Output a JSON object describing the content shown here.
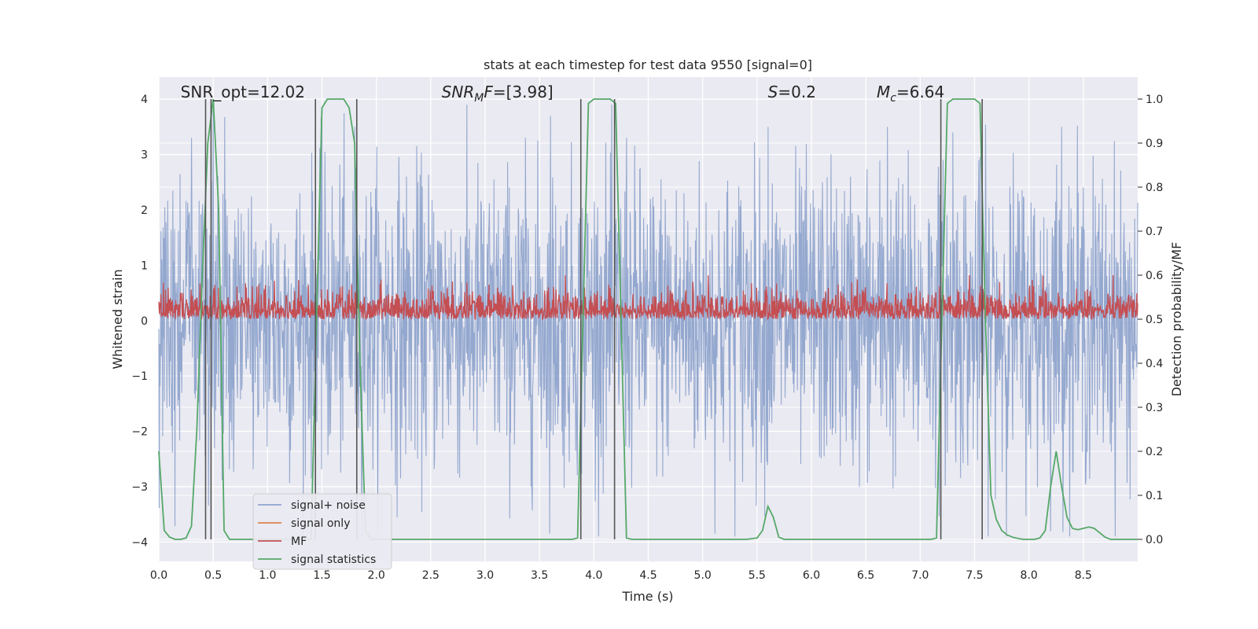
{
  "chart_data": {
    "type": "line",
    "title": "stats at each timestep for test data 9550 [signal=0]",
    "xlabel": "Time (s)",
    "ylabel": "Whitened strain",
    "y2label": "Detection probability/MF",
    "xlim": [
      0.0,
      9.0
    ],
    "ylim": [
      -4.35,
      4.4
    ],
    "y2lim": [
      -0.05,
      1.05
    ],
    "grid": true,
    "legend_position": "lower-left",
    "xticks": [
      "0.0",
      "0.5",
      "1.0",
      "1.5",
      "2.0",
      "2.5",
      "3.0",
      "3.5",
      "4.0",
      "4.5",
      "5.0",
      "5.5",
      "6.0",
      "6.5",
      "7.0",
      "7.5",
      "8.0",
      "8.5"
    ],
    "yticks": [
      "4",
      "3",
      "2",
      "1",
      "0",
      "−1",
      "−2",
      "−3",
      "−4"
    ],
    "y2ticks": [
      "1.0",
      "0.9",
      "0.8",
      "0.7",
      "0.6",
      "0.5",
      "0.4",
      "0.3",
      "0.2",
      "0.1",
      "0.0"
    ],
    "annotations": [
      {
        "name": "snr-opt",
        "text": "SNR_opt=12.02",
        "x": 0.2
      },
      {
        "name": "snr-mf",
        "base": "SNR",
        "sub": "M",
        "rest": "F=[3.98]",
        "x": 2.6
      },
      {
        "name": "s-value",
        "base": "S",
        "sub": "",
        "rest": "=0.2",
        "x": 5.6
      },
      {
        "name": "mc-value",
        "base": "M",
        "sub": "c",
        "rest": "=6.64",
        "x": 6.6
      }
    ],
    "series": [
      {
        "name": "signal+ noise",
        "color": "#8fa4cc",
        "axis": "left",
        "sample_rate_hz": 256,
        "std": 1.0,
        "envelope_peaks": [
          [
            0.3,
            3.3
          ],
          [
            0.5,
            3.8
          ],
          [
            1.5,
            3.6
          ],
          [
            1.8,
            3.5
          ],
          [
            3.6,
            3.7
          ],
          [
            4.3,
            3.3
          ],
          [
            5.6,
            3.5
          ],
          [
            6.7,
            3.5
          ],
          [
            7.3,
            3.4
          ],
          [
            8.3,
            3.5
          ]
        ]
      },
      {
        "name": "signal only",
        "color": "#dd8452",
        "axis": "left",
        "values": []
      },
      {
        "name": "MF",
        "color": "#c44e52",
        "axis": "right",
        "sample_rate_hz": 256,
        "baseline": 0.5,
        "range": [
          0.5,
          0.6
        ]
      },
      {
        "name": "signal statistics",
        "color": "#55a868",
        "axis": "right",
        "x": [
          0.0,
          0.05,
          0.1,
          0.15,
          0.2,
          0.25,
          0.3,
          0.35,
          0.4,
          0.45,
          0.5,
          0.55,
          0.6,
          0.65,
          0.7,
          0.75,
          0.8,
          0.85,
          0.9,
          0.95,
          1.0,
          1.05,
          1.1,
          1.15,
          1.2,
          1.25,
          1.3,
          1.35,
          1.4,
          1.45,
          1.5,
          1.55,
          1.6,
          1.65,
          1.7,
          1.75,
          1.8,
          1.85,
          1.9,
          1.95,
          2.0,
          2.1,
          2.5,
          3.0,
          3.5,
          3.8,
          3.85,
          3.9,
          3.95,
          4.0,
          4.05,
          4.1,
          4.15,
          4.2,
          4.25,
          4.3,
          4.35,
          4.5,
          5.0,
          5.4,
          5.5,
          5.55,
          5.6,
          5.65,
          5.7,
          5.75,
          5.8,
          6.0,
          6.5,
          7.0,
          7.1,
          7.15,
          7.2,
          7.25,
          7.3,
          7.35,
          7.4,
          7.45,
          7.5,
          7.55,
          7.6,
          7.65,
          7.7,
          7.75,
          7.8,
          7.85,
          7.9,
          7.95,
          8.0,
          8.05,
          8.1,
          8.15,
          8.2,
          8.25,
          8.3,
          8.35,
          8.4,
          8.45,
          8.5,
          8.55,
          8.6,
          8.65,
          8.7,
          8.75,
          8.8,
          8.85,
          8.9,
          9.0
        ],
        "y": [
          0.2,
          0.02,
          0.005,
          0.0,
          0.0,
          0.003,
          0.03,
          0.25,
          0.6,
          0.9,
          1.0,
          0.75,
          0.02,
          0.0,
          0.0,
          0.0,
          0.0,
          0.0,
          0.0,
          0.0,
          0.0,
          0.0,
          0.0,
          0.0,
          0.0,
          0.0,
          0.0,
          0.0,
          0.0,
          0.5,
          0.98,
          1.0,
          1.0,
          1.0,
          1.0,
          0.98,
          0.9,
          0.4,
          0.02,
          0.0,
          0.0,
          0.0,
          0.0,
          0.0,
          0.0,
          0.0,
          0.003,
          0.5,
          0.99,
          1.0,
          1.0,
          1.0,
          1.0,
          0.99,
          0.5,
          0.003,
          0.0,
          0.0,
          0.0,
          0.0,
          0.003,
          0.02,
          0.075,
          0.05,
          0.005,
          0.0,
          0.0,
          0.0,
          0.0,
          0.0,
          0.0,
          0.003,
          0.5,
          0.99,
          1.0,
          1.0,
          1.0,
          1.0,
          1.0,
          0.99,
          0.5,
          0.1,
          0.045,
          0.02,
          0.01,
          0.005,
          0.002,
          0.0,
          0.0,
          0.0,
          0.003,
          0.02,
          0.12,
          0.2,
          0.12,
          0.05,
          0.025,
          0.022,
          0.025,
          0.028,
          0.025,
          0.015,
          0.005,
          0.0,
          0.0,
          0.0,
          0.0,
          0.0
        ]
      }
    ],
    "vlines": {
      "color": "#555555",
      "x": [
        0.43,
        0.48,
        1.44,
        1.82,
        3.88,
        4.19,
        7.19,
        7.57
      ]
    }
  }
}
